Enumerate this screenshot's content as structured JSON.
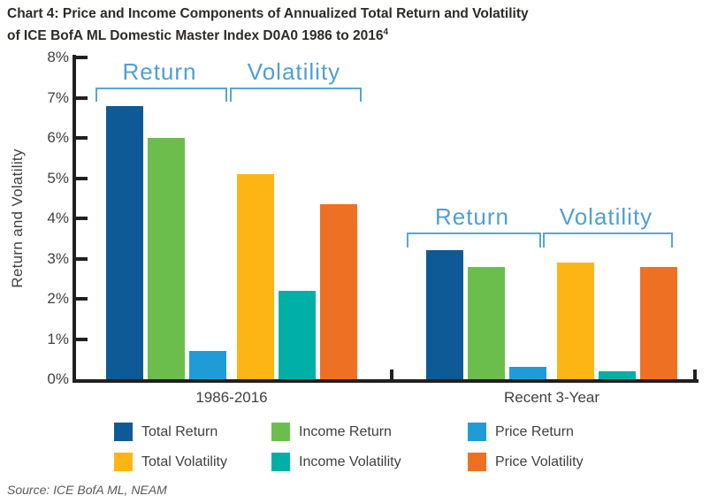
{
  "title": {
    "line1": "Chart 4: Price and Income Components of Annualized Total Return and Volatility",
    "line2": "of ICE BofA ML Domestic Master Index D0A0 1986 to 2016",
    "superscript": "4"
  },
  "source": "Source: ICE BofA ML, NEAM",
  "colors": {
    "axis": "#231f20",
    "text": "#414042",
    "bracket": "#58a5d8",
    "bracket_text": "#4f9fd3"
  },
  "chart_data": {
    "type": "bar",
    "title": "Chart 4: Price and Income Components of Annualized Total Return and Volatility of ICE BofA ML Domestic Master Index D0A0 1986 to 2016",
    "ylabel": "Return and Volatility",
    "xlabel": "",
    "ylim": [
      0,
      8
    ],
    "yticks": [
      "0%",
      "1%",
      "2%",
      "3%",
      "4%",
      "5%",
      "6%",
      "7%",
      "8%"
    ],
    "grid": false,
    "legend_position": "bottom",
    "categories": [
      "1986-2016",
      "Recent 3-Year"
    ],
    "series": [
      {
        "name": "Total Return",
        "color": "#0e5a96",
        "values": [
          6.8,
          3.2
        ]
      },
      {
        "name": "Income Return",
        "color": "#6cbe4c",
        "values": [
          6.0,
          2.8
        ]
      },
      {
        "name": "Price Return",
        "color": "#1f9cd7",
        "values": [
          0.7,
          0.3
        ]
      },
      {
        "name": "Total Volatility",
        "color": "#fdb515",
        "values": [
          5.1,
          2.9
        ]
      },
      {
        "name": "Income Volatility",
        "color": "#00b0a6",
        "values": [
          2.2,
          0.2
        ]
      },
      {
        "name": "Price Volatility",
        "color": "#ee7123",
        "values": [
          4.35,
          2.8
        ]
      }
    ],
    "group_annotations": [
      {
        "category": "1986-2016",
        "labels": [
          "Return",
          "Volatility"
        ]
      },
      {
        "category": "Recent 3-Year",
        "labels": [
          "Return",
          "Volatility"
        ]
      }
    ]
  }
}
